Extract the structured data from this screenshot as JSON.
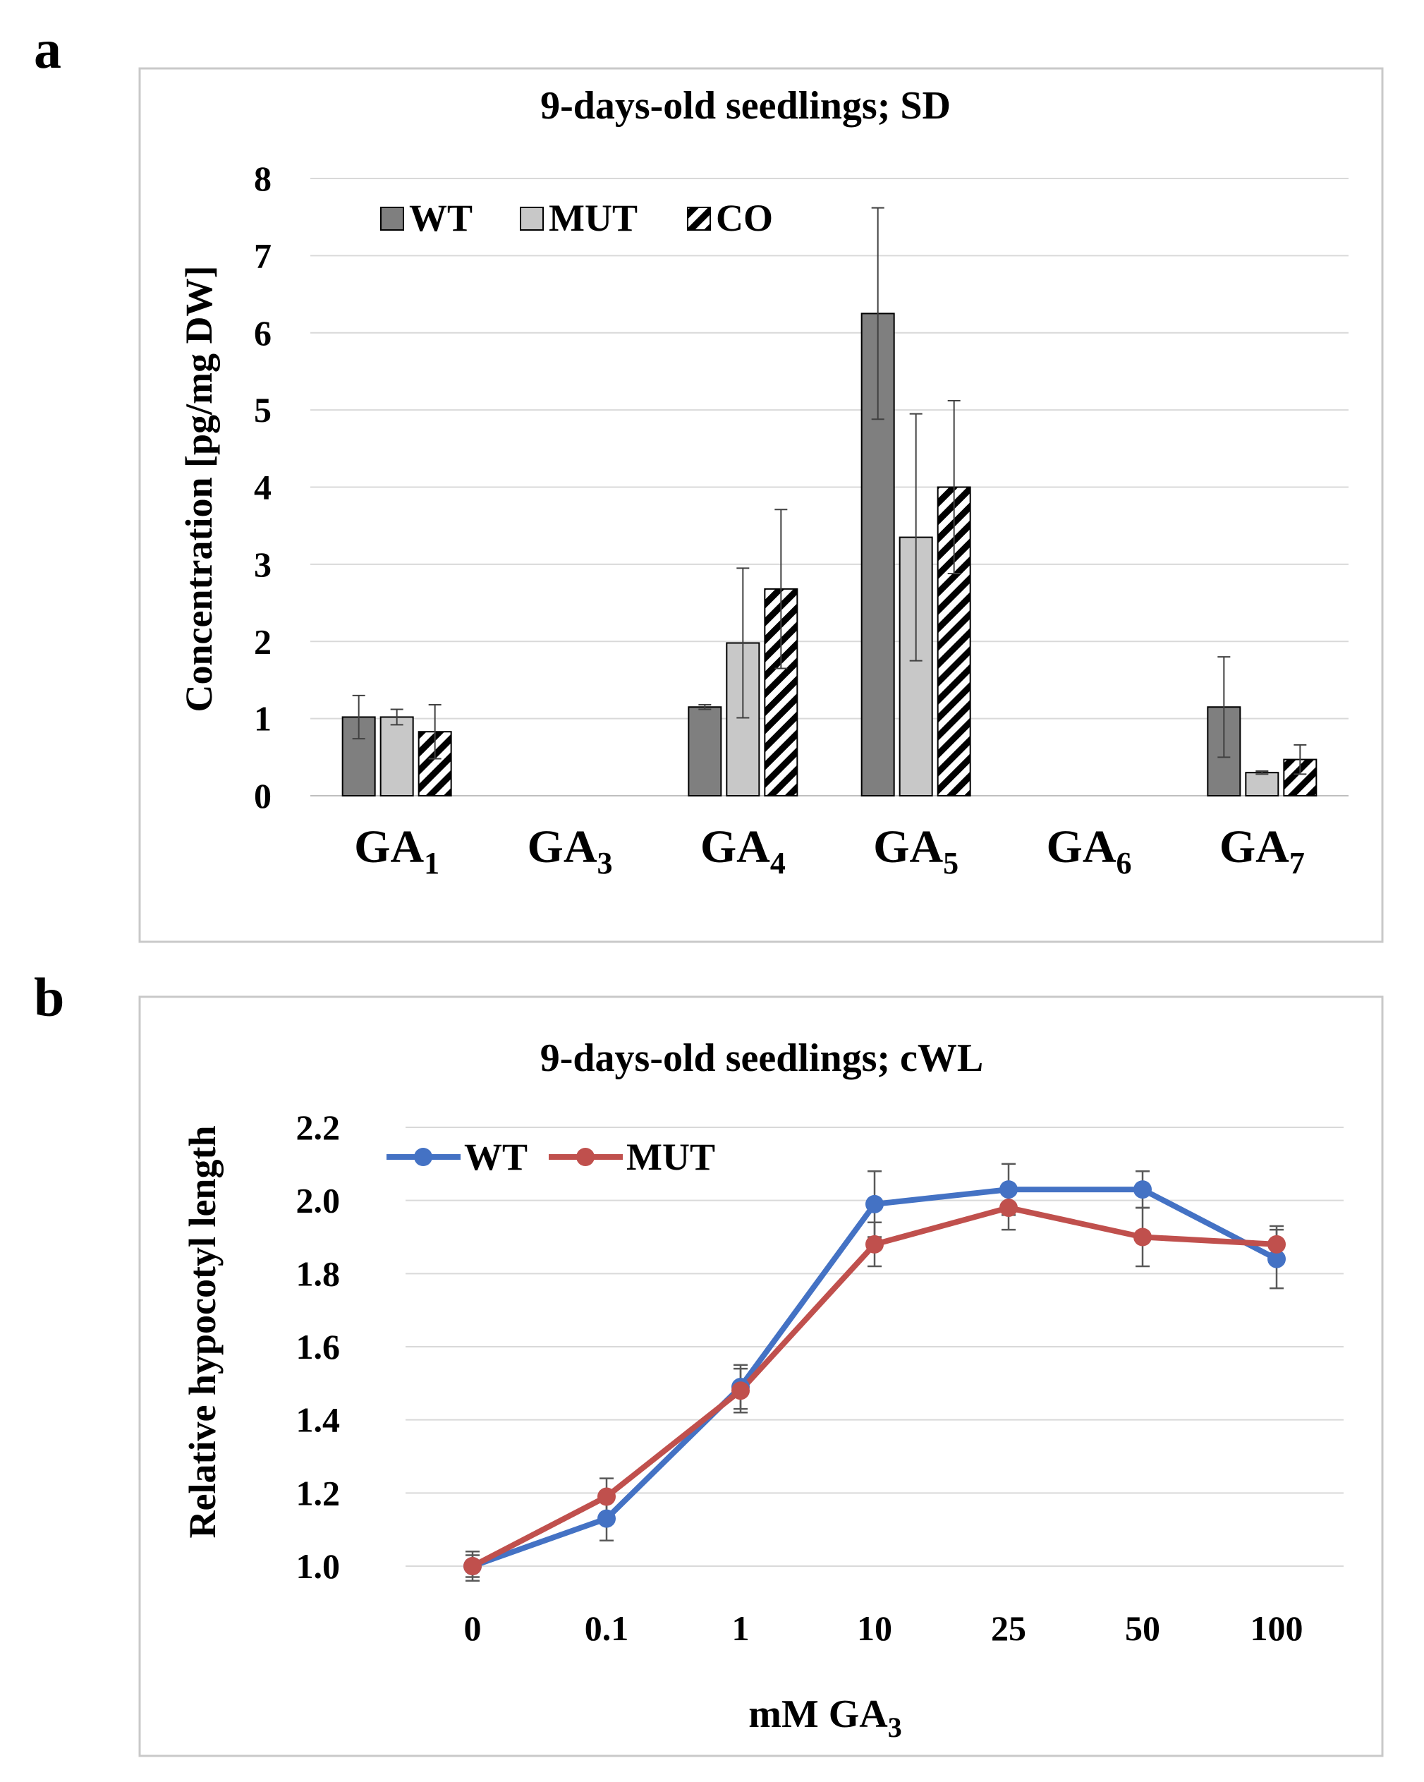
{
  "panel_a_label": "a",
  "panel_b_label": "b",
  "chart_data": [
    {
      "type": "bar",
      "title": "9-days-old seedlings; SD",
      "xlabel": "",
      "ylabel": "Concentration [pg/mg DW]",
      "ylim": [
        0,
        8
      ],
      "yticks": [
        0,
        1,
        2,
        3,
        4,
        5,
        6,
        7,
        8
      ],
      "grid": true,
      "legend_position": "top-left",
      "categories": [
        {
          "base": "GA",
          "sub": "1"
        },
        {
          "base": "GA",
          "sub": "3"
        },
        {
          "base": "GA",
          "sub": "4"
        },
        {
          "base": "GA",
          "sub": "5"
        },
        {
          "base": "GA",
          "sub": "6"
        },
        {
          "base": "GA",
          "sub": "7"
        }
      ],
      "series": [
        {
          "name": "WT",
          "color": "#7f7f7f",
          "pattern": "solid",
          "values": [
            1.02,
            null,
            1.15,
            6.25,
            null,
            1.15
          ],
          "errors": [
            0.28,
            null,
            0.03,
            1.37,
            null,
            0.65
          ]
        },
        {
          "name": "MUT",
          "color": "#c8c8c8",
          "pattern": "solid",
          "values": [
            1.02,
            null,
            1.98,
            3.35,
            null,
            0.3
          ],
          "errors": [
            0.1,
            null,
            0.97,
            1.6,
            null,
            0.02
          ]
        },
        {
          "name": "CO",
          "color": "#000000",
          "pattern": "hatch",
          "values": [
            0.83,
            null,
            2.68,
            4.0,
            null,
            0.47
          ],
          "errors": [
            0.35,
            null,
            1.03,
            1.12,
            null,
            0.19
          ]
        }
      ]
    },
    {
      "type": "line",
      "title": "9-days-old seedlings;  cWL",
      "xlabel_base": "mM GA",
      "xlabel_sub": "3",
      "ylabel": "Relative hypocotyl length",
      "ylim": [
        1.0,
        2.2
      ],
      "yticks": [
        "1.0",
        "1.2",
        "1.4",
        "1.6",
        "1.8",
        "2.0",
        "2.2"
      ],
      "grid": true,
      "legend_position": "top-left",
      "categories": [
        "0",
        "0.1",
        "1",
        "10",
        "25",
        "50",
        "100"
      ],
      "series": [
        {
          "name": "WT",
          "color": "#4472c4",
          "values": [
            1.0,
            1.13,
            1.49,
            1.99,
            2.03,
            2.03,
            1.84
          ],
          "errors": [
            0.04,
            0.06,
            0.06,
            0.09,
            0.07,
            0.05,
            0.08
          ]
        },
        {
          "name": "MUT",
          "color": "#c0504d",
          "values": [
            1.0,
            1.19,
            1.48,
            1.88,
            1.98,
            1.9,
            1.88
          ],
          "errors": [
            0.03,
            0.05,
            0.06,
            0.06,
            0.06,
            0.08,
            0.05
          ]
        }
      ]
    }
  ]
}
